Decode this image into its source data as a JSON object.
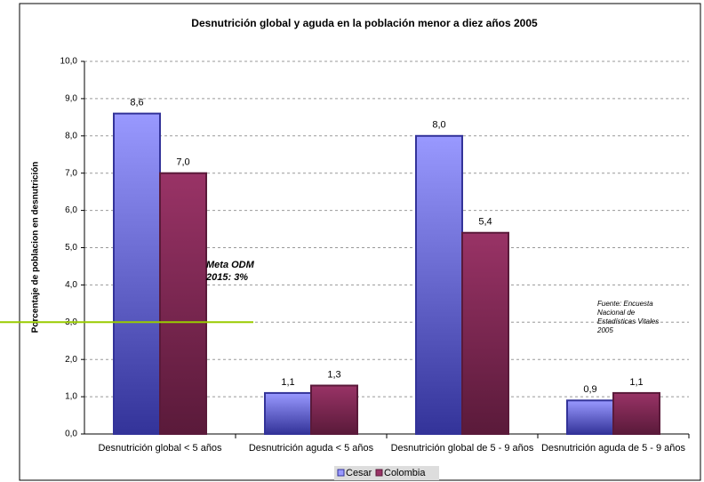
{
  "chart_data": {
    "type": "bar",
    "title": "Desnutrición global y aguda en la población menor a diez años 2005",
    "y_label": "Porcentaje de poblacion en desnutrición",
    "categories": [
      "Desnutrición global < 5 años",
      "Desnutrición aguda < 5 años",
      "Desnutrición global de 5 - 9 años",
      "Desnutrición aguda de 5 - 9 años"
    ],
    "series": [
      {
        "name": "Cesar",
        "color": "#9999ff",
        "border": "#333399",
        "values": [
          8.6,
          1.1,
          8.0,
          0.9
        ],
        "value_labels": [
          "8,6",
          "1,1",
          "8,0",
          "0,9"
        ]
      },
      {
        "name": "Colombia",
        "color": "#993366",
        "border": "#5a1a3a",
        "values": [
          7.0,
          1.3,
          5.4,
          1.1
        ],
        "value_labels": [
          "7,0",
          "1,3",
          "5,4",
          "1,1"
        ]
      }
    ],
    "ylim": [
      0,
      10
    ],
    "yticks": [
      {
        "value": 0,
        "label": "0,0"
      },
      {
        "value": 1,
        "label": "1,0"
      },
      {
        "value": 2,
        "label": "2,0"
      },
      {
        "value": 3,
        "label": "3,0"
      },
      {
        "value": 4,
        "label": "4,0"
      },
      {
        "value": 5,
        "label": "5,0"
      },
      {
        "value": 6,
        "label": "6,0"
      },
      {
        "value": 7,
        "label": "7,0"
      },
      {
        "value": 8,
        "label": "8,0"
      },
      {
        "value": 9,
        "label": "9,0"
      },
      {
        "value": 10,
        "label": "10,0"
      }
    ],
    "grid": true,
    "target_line": {
      "value": 3,
      "color": "#99cc00"
    },
    "target_annotation": [
      "Meta ODM",
      "2015: 3%"
    ],
    "source_note": [
      "Fuente:  Encuesta",
      "Nacional de",
      "Estadísticas Vitales",
      "2005"
    ],
    "legend": "bottom"
  }
}
